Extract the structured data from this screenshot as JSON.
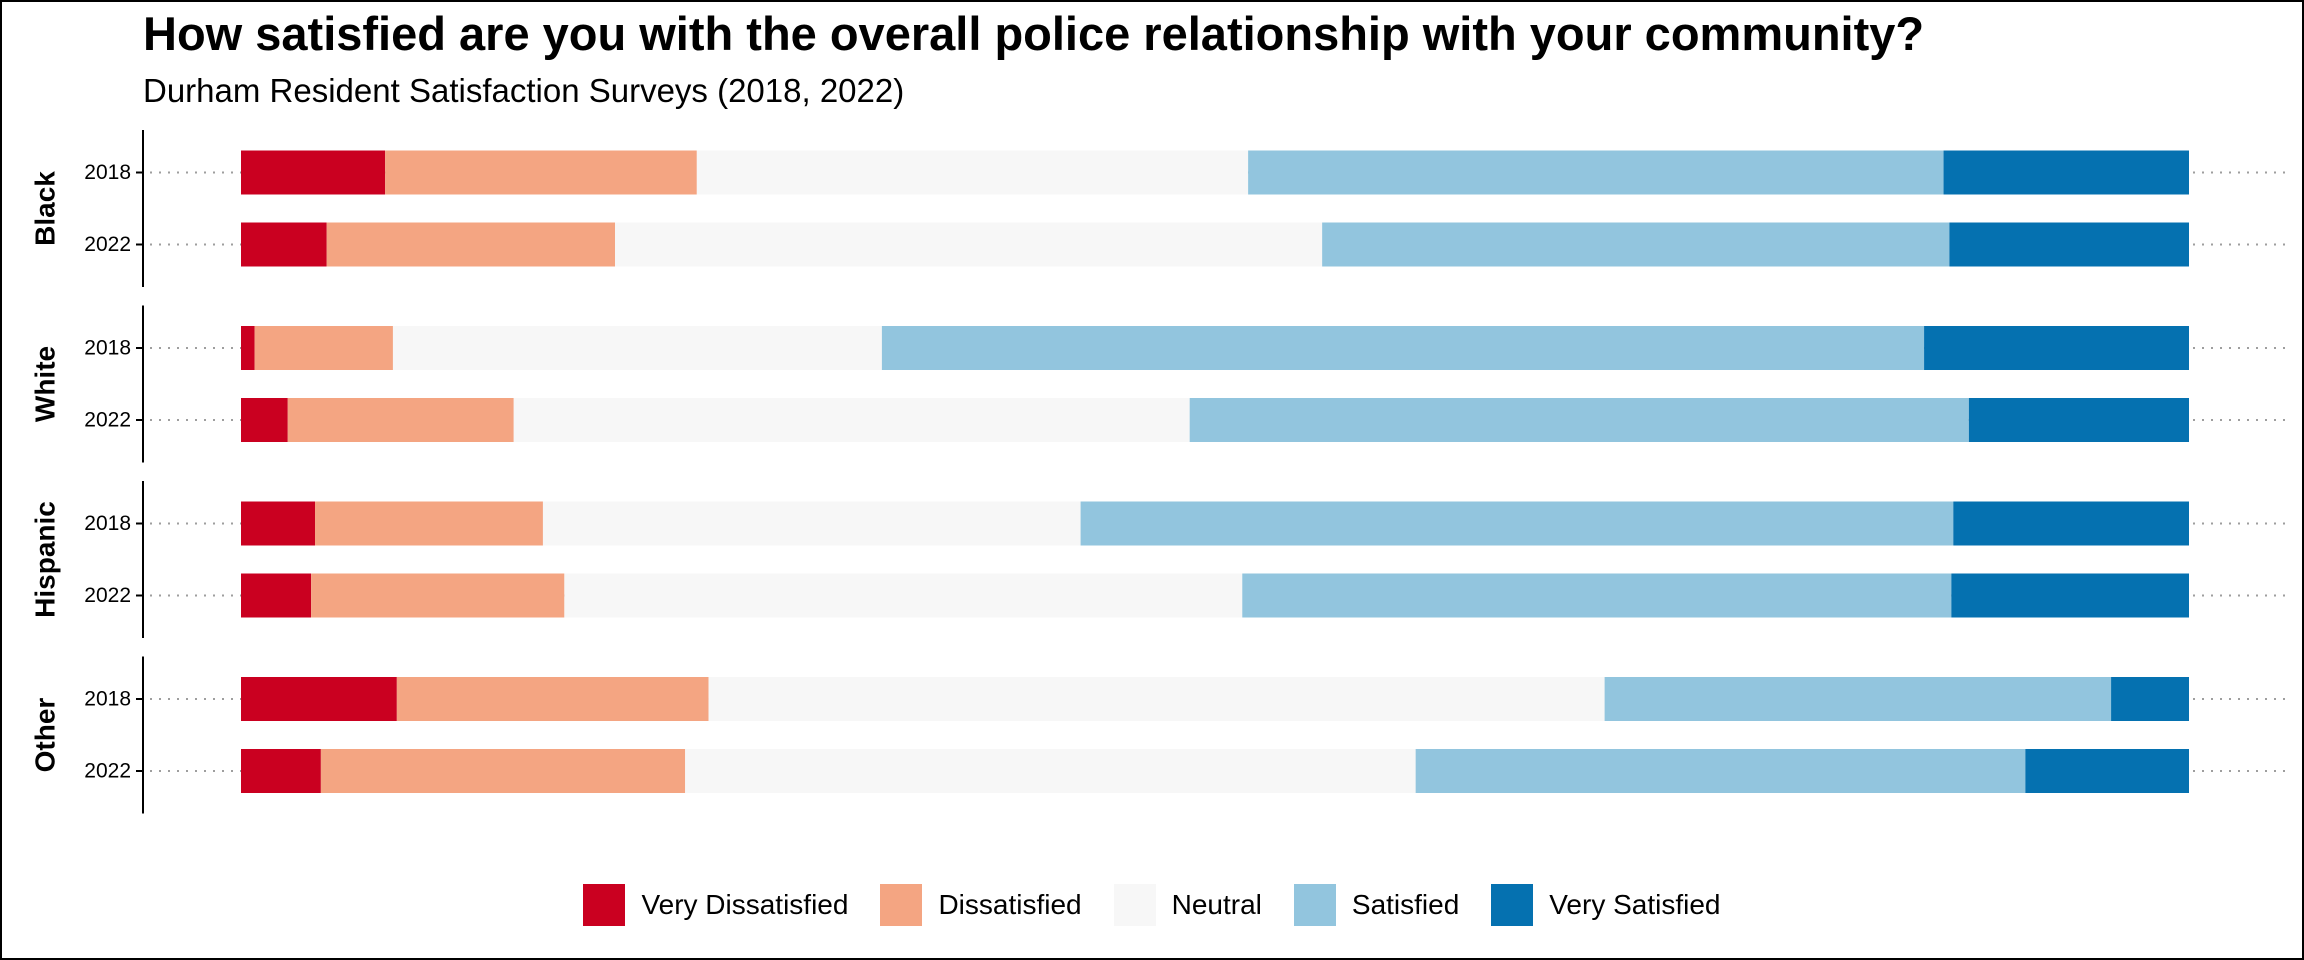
{
  "chart_data": {
    "type": "bar",
    "orientation": "horizontal",
    "stacked": "percent",
    "title": "How satisfied are you with the overall police relationship with your community?",
    "subtitle": "Durham Resident Satisfaction Surveys (2018, 2022)",
    "xlim": [
      0,
      100
    ],
    "grid": "dotted horizontal lines per row",
    "legend_position": "bottom",
    "groups": [
      "Black",
      "White",
      "Hispanic",
      "Other"
    ],
    "row_labels": [
      "2018",
      "2022"
    ],
    "levels": [
      "Very Dissatisfied",
      "Dissatisfied",
      "Neutral",
      "Satisfied",
      "Very Satisfied"
    ],
    "colors": [
      "#ca0020",
      "#f4a582",
      "#f7f7f7",
      "#92c5de",
      "#0571b0"
    ],
    "series": [
      {
        "group": "Black",
        "year": "2018",
        "values": [
          7.4,
          16.0,
          28.3,
          35.7,
          12.6
        ]
      },
      {
        "group": "Black",
        "year": "2022",
        "values": [
          4.4,
          14.8,
          36.3,
          32.2,
          12.3
        ]
      },
      {
        "group": "White",
        "year": "2018",
        "values": [
          0.7,
          7.1,
          25.1,
          53.5,
          13.6
        ]
      },
      {
        "group": "White",
        "year": "2022",
        "values": [
          2.4,
          11.6,
          34.7,
          40.0,
          11.3
        ]
      },
      {
        "group": "Hispanic",
        "year": "2018",
        "values": [
          3.8,
          11.7,
          27.6,
          44.8,
          12.1
        ]
      },
      {
        "group": "Hispanic",
        "year": "2022",
        "values": [
          3.6,
          13.0,
          34.8,
          36.4,
          12.2
        ]
      },
      {
        "group": "Other",
        "year": "2018",
        "values": [
          8.0,
          16.0,
          46.0,
          26.0,
          4.0
        ]
      },
      {
        "group": "Other",
        "year": "2022",
        "values": [
          4.1,
          18.7,
          37.5,
          31.3,
          8.4
        ]
      }
    ]
  }
}
